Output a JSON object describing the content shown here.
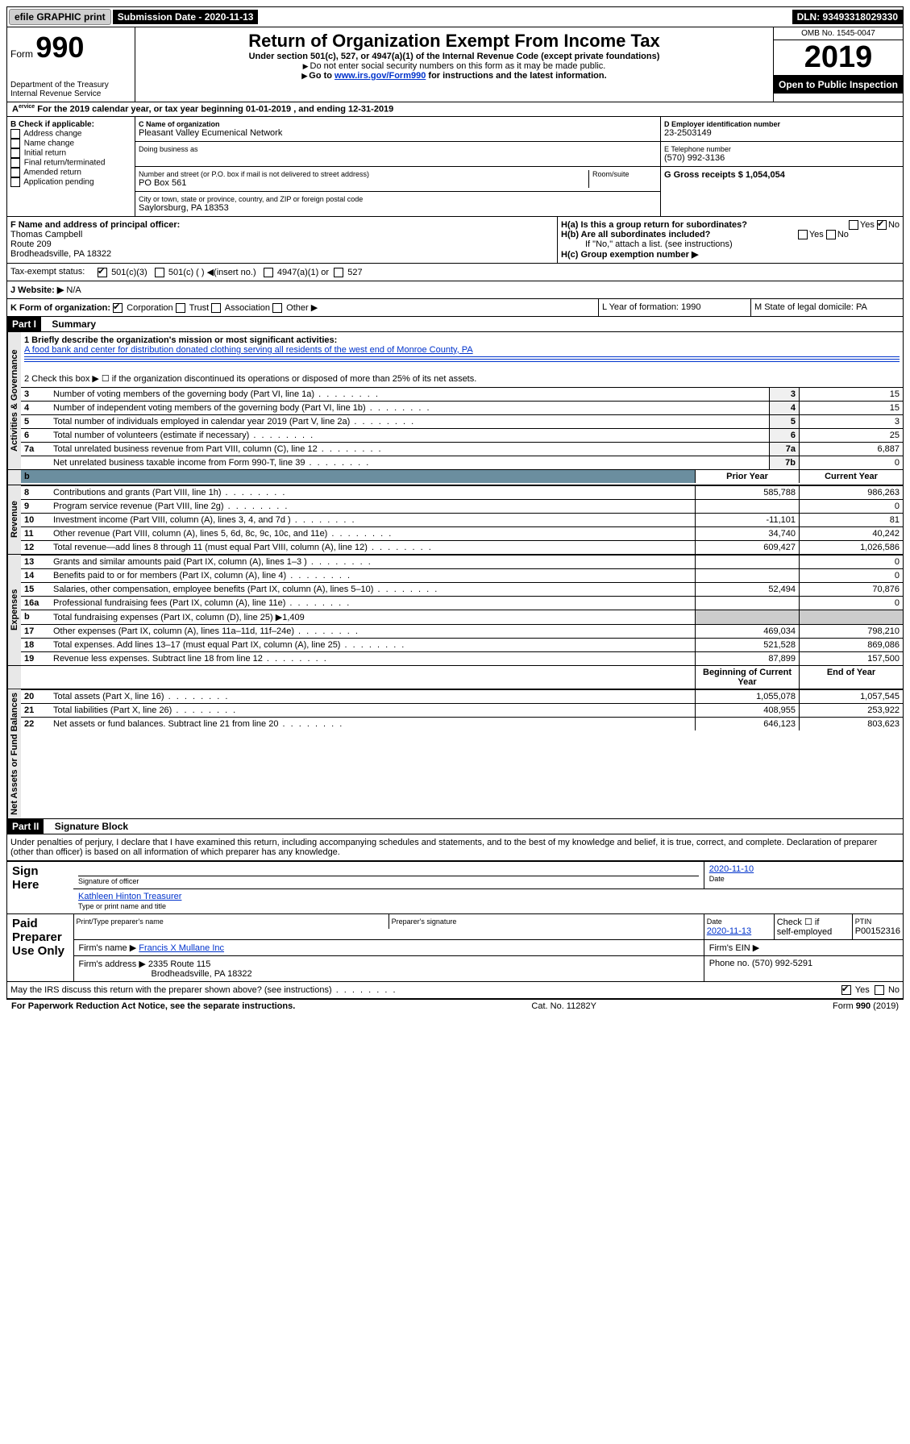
{
  "topbar": {
    "efile": "efile GRAPHIC print",
    "submission_label": "Submission Date - 2020-11-13",
    "dln": "DLN: 93493318029330"
  },
  "header": {
    "form_label": "Form",
    "form_number": "990",
    "dept": "Department of the Treasury\nInternal Revenue Service",
    "title": "Return of Organization Exempt From Income Tax",
    "subtitle": "Under section 501(c), 527, or 4947(a)(1) of the Internal Revenue Code (except private foundations)",
    "note1": "Do not enter social security numbers on this form as it may be made public.",
    "note2_pre": "Go to ",
    "note2_link": "www.irs.gov/Form990",
    "note2_post": " for instructions and the latest information.",
    "omb": "OMB No. 1545-0047",
    "year": "2019",
    "open": "Open to Public Inspection"
  },
  "rowA": "For the 2019 calendar year, or tax year beginning 01-01-2019   , and ending 12-31-2019",
  "colB": {
    "title": "B Check if applicable:",
    "items": [
      "Address change",
      "Name change",
      "Initial return",
      "Final return/terminated",
      "Amended return",
      "Application pending"
    ]
  },
  "colC": {
    "name_label": "C Name of organization",
    "name": "Pleasant Valley Ecumenical Network",
    "dba_label": "Doing business as",
    "addr_label": "Number and street (or P.O. box if mail is not delivered to street address)",
    "room_label": "Room/suite",
    "addr": "PO Box 561",
    "city_label": "City or town, state or province, country, and ZIP or foreign postal code",
    "city": "Saylorsburg, PA  18353"
  },
  "colD": {
    "label": "D Employer identification number",
    "value": "23-2503149",
    "e_label": "E Telephone number",
    "e_value": "(570) 992-3136",
    "g_label": "G Gross receipts $ 1,054,054"
  },
  "rowF": {
    "label": "F  Name and address of principal officer:",
    "name": "Thomas Campbell",
    "addr1": "Route 209",
    "addr2": "Brodheadsville, PA  18322"
  },
  "rowH": {
    "ha": "H(a)  Is this a group return for subordinates?",
    "hb": "H(b)  Are all subordinates included?",
    "hb_note": "If \"No,\" attach a list. (see instructions)",
    "hc": "H(c)  Group exemption number ▶"
  },
  "taxexempt": {
    "label": "Tax-exempt status:",
    "opt1": "501(c)(3)",
    "opt2": "501(c) (  ) ◀(insert no.)",
    "opt3": "4947(a)(1) or",
    "opt4": "527"
  },
  "rowJ": {
    "label": "J   Website: ▶",
    "value": "N/A"
  },
  "rowK": {
    "label": "K Form of organization:",
    "opts": [
      "Corporation",
      "Trust",
      "Association",
      "Other ▶"
    ],
    "L": "L Year of formation: 1990",
    "M": "M State of legal domicile: PA"
  },
  "part1": {
    "title": "Part I",
    "name": "Summary",
    "line1_label": "1  Briefly describe the organization's mission or most significant activities:",
    "line1_text": "A food bank and center for distribution donated clothing serving all residents of the west end of Monroe County, PA",
    "line2": "2   Check this box ▶ ☐  if the organization discontinued its operations or disposed of more than 25% of its net assets.",
    "sections": {
      "gov": "Activities & Governance",
      "rev": "Revenue",
      "exp": "Expenses",
      "net": "Net Assets or Fund Balances"
    },
    "headers": {
      "prior": "Prior Year",
      "current": "Current Year",
      "begin": "Beginning of Current Year",
      "end": "End of Year"
    },
    "rows_gov": [
      {
        "n": "3",
        "t": "Number of voting members of the governing body (Part VI, line 1a)",
        "ln": "3",
        "v": "15"
      },
      {
        "n": "4",
        "t": "Number of independent voting members of the governing body (Part VI, line 1b)",
        "ln": "4",
        "v": "15"
      },
      {
        "n": "5",
        "t": "Total number of individuals employed in calendar year 2019 (Part V, line 2a)",
        "ln": "5",
        "v": "3"
      },
      {
        "n": "6",
        "t": "Total number of volunteers (estimate if necessary)",
        "ln": "6",
        "v": "25"
      },
      {
        "n": "7a",
        "t": "Total unrelated business revenue from Part VIII, column (C), line 12",
        "ln": "7a",
        "v": "6,887"
      },
      {
        "n": "",
        "t": "Net unrelated business taxable income from Form 990-T, line 39",
        "ln": "7b",
        "v": "0"
      }
    ],
    "rows_rev": [
      {
        "n": "8",
        "t": "Contributions and grants (Part VIII, line 1h)",
        "p": "585,788",
        "c": "986,263"
      },
      {
        "n": "9",
        "t": "Program service revenue (Part VIII, line 2g)",
        "p": "",
        "c": "0"
      },
      {
        "n": "10",
        "t": "Investment income (Part VIII, column (A), lines 3, 4, and 7d )",
        "p": "-11,101",
        "c": "81"
      },
      {
        "n": "11",
        "t": "Other revenue (Part VIII, column (A), lines 5, 6d, 8c, 9c, 10c, and 11e)",
        "p": "34,740",
        "c": "40,242"
      },
      {
        "n": "12",
        "t": "Total revenue—add lines 8 through 11 (must equal Part VIII, column (A), line 12)",
        "p": "609,427",
        "c": "1,026,586"
      }
    ],
    "rows_exp": [
      {
        "n": "13",
        "t": "Grants and similar amounts paid (Part IX, column (A), lines 1–3 )",
        "p": "",
        "c": "0"
      },
      {
        "n": "14",
        "t": "Benefits paid to or for members (Part IX, column (A), line 4)",
        "p": "",
        "c": "0"
      },
      {
        "n": "15",
        "t": "Salaries, other compensation, employee benefits (Part IX, column (A), lines 5–10)",
        "p": "52,494",
        "c": "70,876"
      },
      {
        "n": "16a",
        "t": "Professional fundraising fees (Part IX, column (A), line 11e)",
        "p": "",
        "c": "0"
      },
      {
        "n": "b",
        "t": "Total fundraising expenses (Part IX, column (D), line 25) ▶1,409",
        "p": "—",
        "c": "—"
      },
      {
        "n": "17",
        "t": "Other expenses (Part IX, column (A), lines 11a–11d, 11f–24e)",
        "p": "469,034",
        "c": "798,210"
      },
      {
        "n": "18",
        "t": "Total expenses. Add lines 13–17 (must equal Part IX, column (A), line 25)",
        "p": "521,528",
        "c": "869,086"
      },
      {
        "n": "19",
        "t": "Revenue less expenses. Subtract line 18 from line 12",
        "p": "87,899",
        "c": "157,500"
      }
    ],
    "rows_net": [
      {
        "n": "20",
        "t": "Total assets (Part X, line 16)",
        "p": "1,055,078",
        "c": "1,057,545"
      },
      {
        "n": "21",
        "t": "Total liabilities (Part X, line 26)",
        "p": "408,955",
        "c": "253,922"
      },
      {
        "n": "22",
        "t": "Net assets or fund balances. Subtract line 21 from line 20",
        "p": "646,123",
        "c": "803,623"
      }
    ]
  },
  "part2": {
    "title": "Part II",
    "name": "Signature Block",
    "decl": "Under penalties of perjury, I declare that I have examined this return, including accompanying schedules and statements, and to the best of my knowledge and belief, it is true, correct, and complete. Declaration of preparer (other than officer) is based on all information of which preparer has any knowledge.",
    "sign_here": "Sign Here",
    "sig_officer": "Signature of officer",
    "sig_date": "2020-11-10",
    "date_label": "Date",
    "officer_name": "Kathleen Hinton  Treasurer",
    "type_label": "Type or print name and title",
    "paid": "Paid Preparer Use Only",
    "prep_name_label": "Print/Type preparer's name",
    "prep_sig_label": "Preparer's signature",
    "prep_date": "2020-11-13",
    "self_emp": "self-employed",
    "check_label": "Check ☐ if",
    "ptin_label": "PTIN",
    "ptin": "P00152316",
    "firm_name_label": "Firm's name    ▶",
    "firm_name": "Francis X Mullane Inc",
    "firm_ein_label": "Firm's EIN ▶",
    "firm_addr_label": "Firm's address ▶",
    "firm_addr1": "2335 Route 115",
    "firm_addr2": "Brodheadsville, PA  18322",
    "phone_label": "Phone no. (570) 992-5291",
    "discuss": "May the IRS discuss this return with the preparer shown above? (see instructions)",
    "yes": "Yes",
    "no": "No"
  },
  "footer": {
    "left": "For Paperwork Reduction Act Notice, see the separate instructions.",
    "mid": "Cat. No. 11282Y",
    "right": "Form 990 (2019)"
  }
}
